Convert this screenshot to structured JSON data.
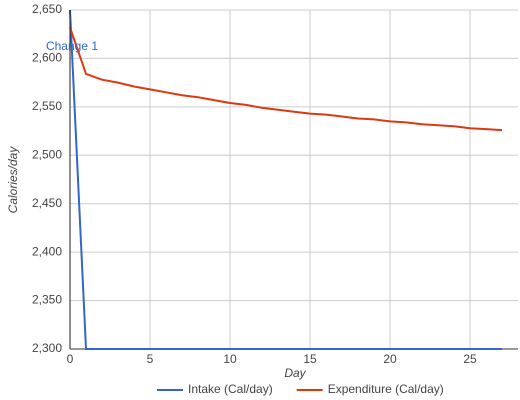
{
  "chart_data": {
    "type": "line",
    "x_label": "Day",
    "y_label": "Calories/day",
    "x": [
      0,
      1,
      2,
      3,
      4,
      5,
      6,
      7,
      8,
      9,
      10,
      11,
      12,
      13,
      14,
      15,
      16,
      17,
      18,
      19,
      20,
      21,
      22,
      23,
      24,
      25,
      26,
      27
    ],
    "series": [
      {
        "name": "Intake (Cal/day)",
        "color": "#3366cc",
        "values": [
          2650,
          2300,
          2300,
          2300,
          2300,
          2300,
          2300,
          2300,
          2300,
          2300,
          2300,
          2300,
          2300,
          2300,
          2300,
          2300,
          2300,
          2300,
          2300,
          2300,
          2300,
          2300,
          2300,
          2300,
          2300,
          2300,
          2300,
          2300
        ]
      },
      {
        "name": "Expenditure (Cal/day)",
        "color": "#dc3912",
        "values": [
          2632,
          2584,
          2578,
          2575,
          2571,
          2568,
          2565,
          2562,
          2560,
          2557,
          2554,
          2552,
          2549,
          2547,
          2545,
          2543,
          2542,
          2540,
          2538,
          2537,
          2535,
          2534,
          2532,
          2531,
          2530,
          2528,
          2527,
          2526
        ]
      }
    ],
    "annotations": [
      {
        "x": 0,
        "label": "Change 1"
      }
    ],
    "xlim": [
      0,
      28
    ],
    "xticks": [
      0,
      5,
      10,
      15,
      20,
      25
    ],
    "ylim": [
      2300,
      2650
    ],
    "yticks": [
      {
        "value": 2300,
        "label": "2,300"
      },
      {
        "value": 2350,
        "label": "2,350"
      },
      {
        "value": 2400,
        "label": "2,400"
      },
      {
        "value": 2450,
        "label": "2,450"
      },
      {
        "value": 2500,
        "label": "2,500"
      },
      {
        "value": 2550,
        "label": "2,550"
      },
      {
        "value": 2600,
        "label": "2,600"
      },
      {
        "value": 2650,
        "label": "2,650"
      }
    ],
    "grid": true,
    "legend": "bottom"
  }
}
